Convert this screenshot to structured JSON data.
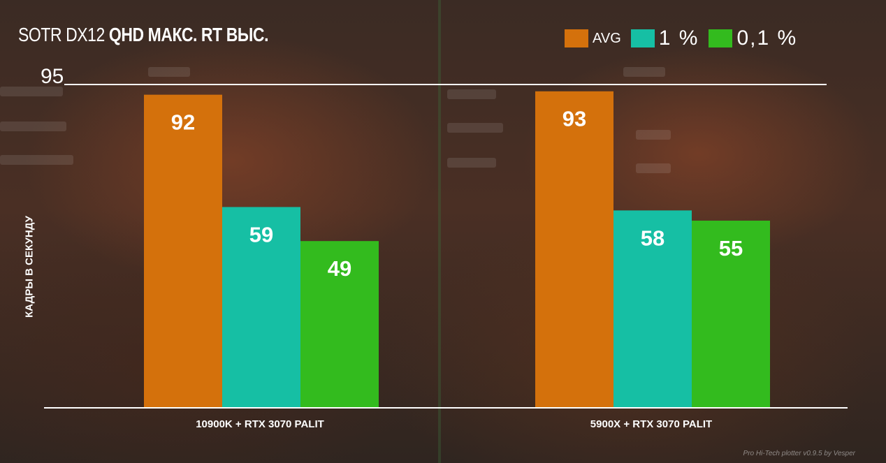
{
  "title_light": "SOTR DX12",
  "title_bold": "QHD МАКС. RT ВЫС.",
  "watermark": "Pro Hi-Tech plotter v0.9.5 by Vesper",
  "colors": {
    "avg": "#d4710c",
    "p1": "#16bfa4",
    "p01": "#33bb1e"
  },
  "chart_data": {
    "type": "bar",
    "categories": [
      "10900K + RTX 3070 PALIT",
      "5900X + RTX 3070 PALIT"
    ],
    "series": [
      {
        "name": "AVG",
        "values": [
          92,
          93
        ]
      },
      {
        "name": "1 %",
        "values": [
          59,
          58
        ]
      },
      {
        "name": "0,1 %",
        "values": [
          49,
          55
        ]
      }
    ],
    "ylabel": "КАДРЫ В СЕКУНДУ",
    "ylim": [
      0,
      95
    ],
    "yticks": [
      "95"
    ],
    "legend_position": "top-right"
  }
}
